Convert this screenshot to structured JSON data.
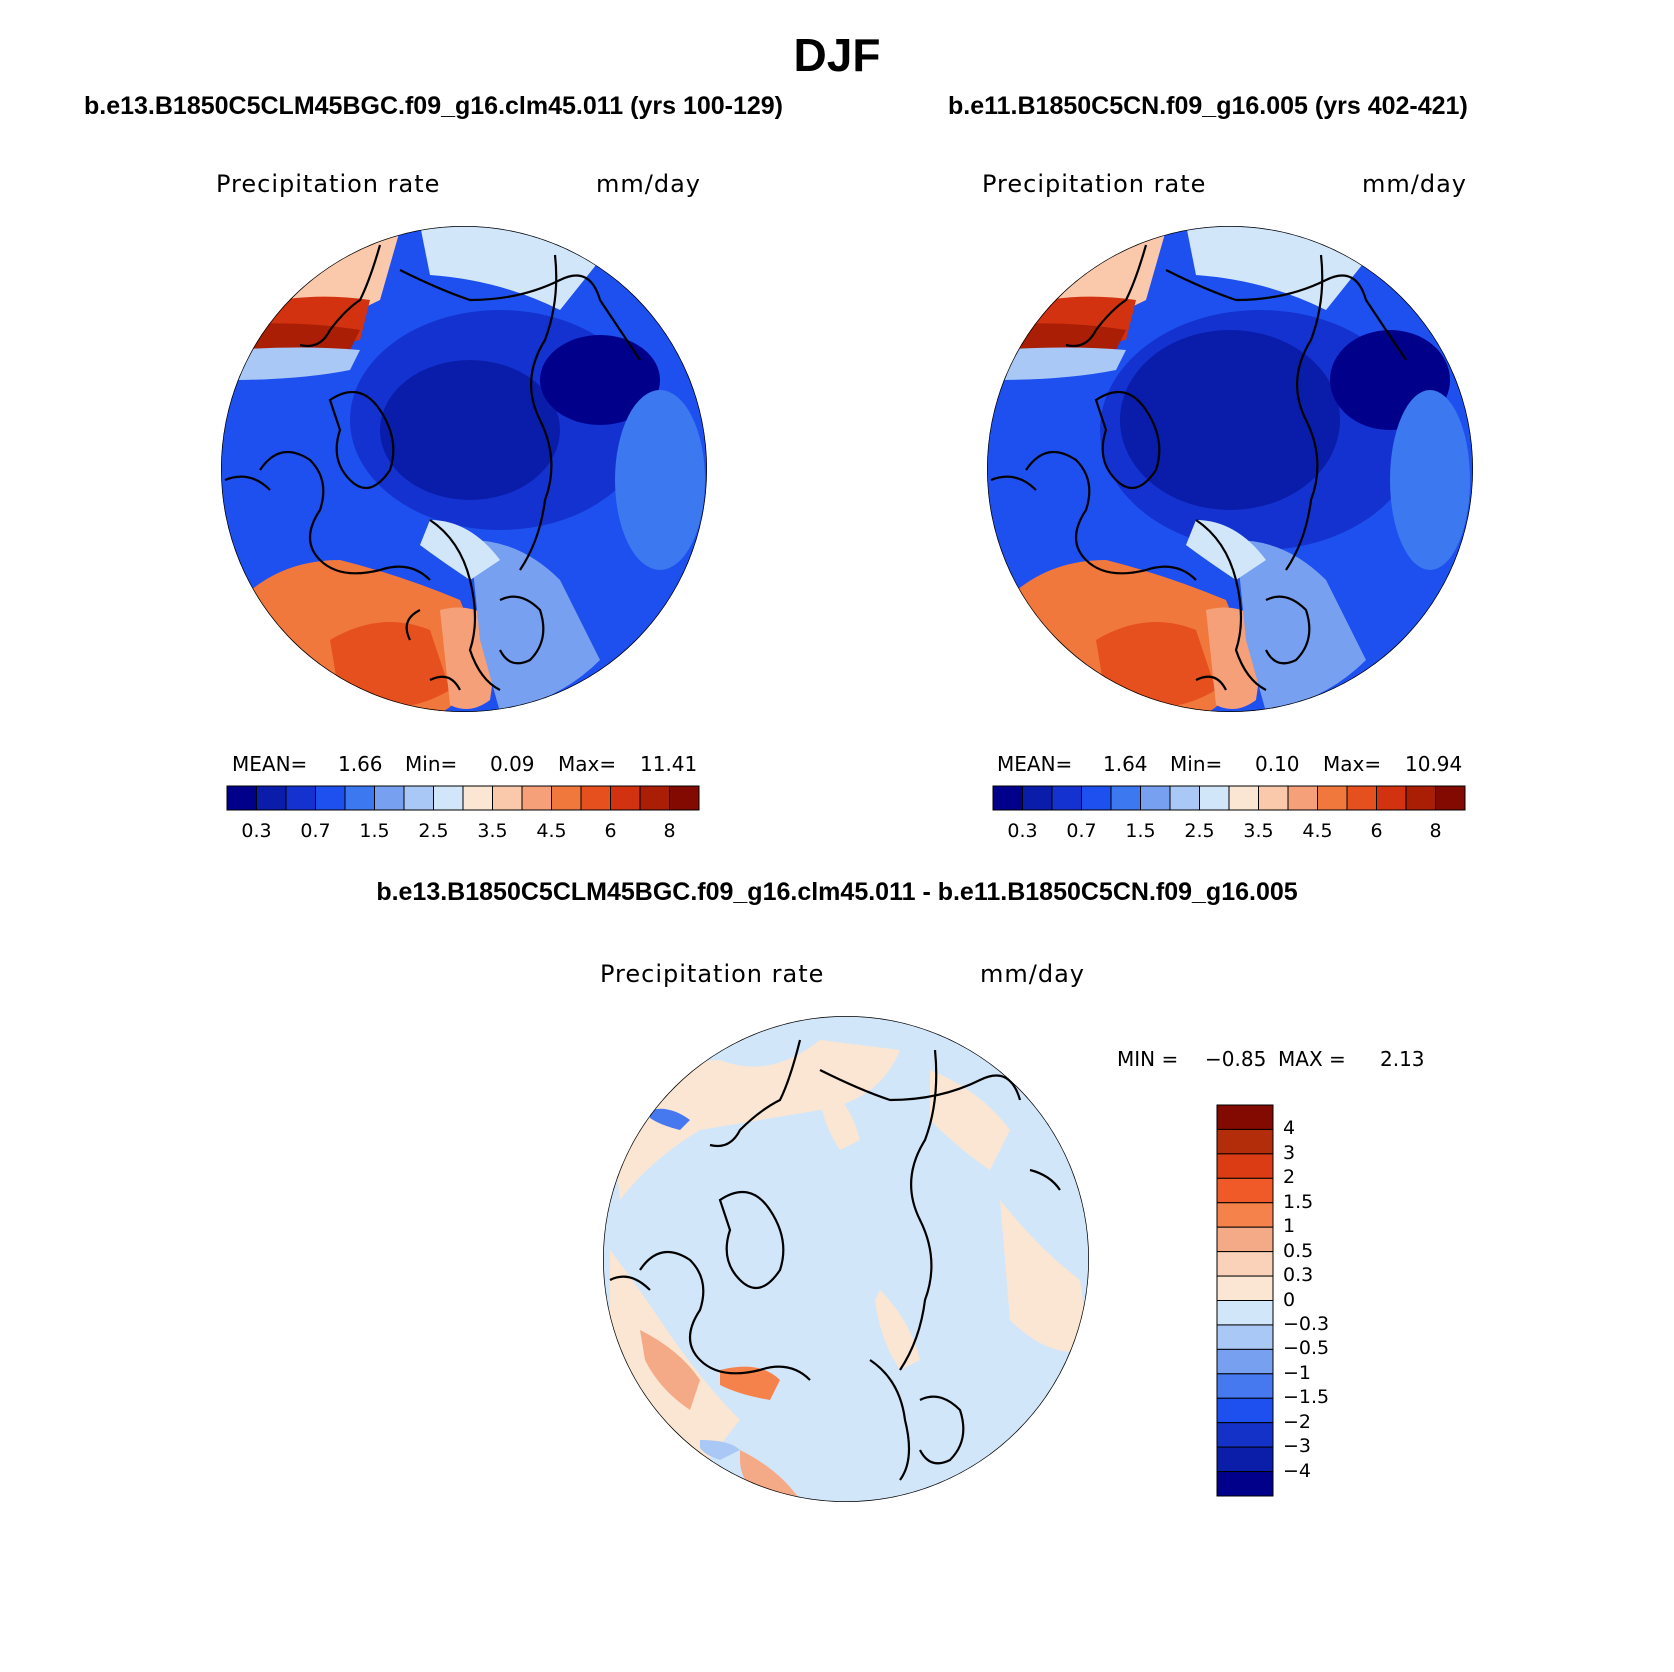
{
  "figure": {
    "title": "DJF"
  },
  "panels": [
    {
      "case": "b.e13.B1850C5CLM45BGC.f09_g16.clm45.011 (yrs 100-129)",
      "variable": "Precipitation rate",
      "units": "mm/day",
      "stats": {
        "mean_label": "MEAN=",
        "mean": "1.66",
        "min_label": "Min=",
        "min": "0.09",
        "max_label": "Max=",
        "max": "11.41"
      }
    },
    {
      "case": "b.e11.B1850C5CN.f09_g16.005 (yrs 402-421)",
      "variable": "Precipitation rate",
      "units": "mm/day",
      "stats": {
        "mean_label": "MEAN=",
        "mean": "1.64",
        "min_label": "Min=",
        "min": "0.10",
        "max_label": "Max=",
        "max": "10.94"
      }
    }
  ],
  "colorbar_abs": {
    "colors": [
      "#00008B",
      "#0A1DAA",
      "#1432D0",
      "#1E50F0",
      "#3C78F0",
      "#78A0F0",
      "#AAC8F5",
      "#D2E6FA",
      "#FAE6D2",
      "#FAC8AA",
      "#F5A078",
      "#F0783C",
      "#E6501E",
      "#D2320F",
      "#AA1E05",
      "#820A00"
    ],
    "tick_labels": [
      "0.3",
      "0.7",
      "1.5",
      "2.5",
      "3.5",
      "4.5",
      "6",
      "8"
    ]
  },
  "difference": {
    "title": "b.e13.B1850C5CLM45BGC.f09_g16.clm45.011 - b.e11.B1850C5CN.f09_g16.005",
    "variable": "Precipitation rate",
    "units": "mm/day",
    "stats": {
      "min_label": "MIN =",
      "min": "−0.85",
      "max_label": "MAX =",
      "max": "2.13"
    },
    "colorbar": {
      "colors_top_to_bottom": [
        "#820A00",
        "#B42D0A",
        "#DC3C14",
        "#F05A28",
        "#F5824B",
        "#F5AA87",
        "#FAD2B9",
        "#FAE6D2",
        "#D2E6FA",
        "#AAC8F5",
        "#78A0F0",
        "#4678F0",
        "#1E50F0",
        "#1432C8",
        "#0A1EAA",
        "#00008B"
      ],
      "tick_labels": [
        "4",
        "3",
        "2",
        "1.5",
        "1",
        "0.5",
        "0.3",
        "0",
        "−0.3",
        "−0.5",
        "−1",
        "−1.5",
        "−2",
        "−3",
        "−4"
      ]
    }
  }
}
